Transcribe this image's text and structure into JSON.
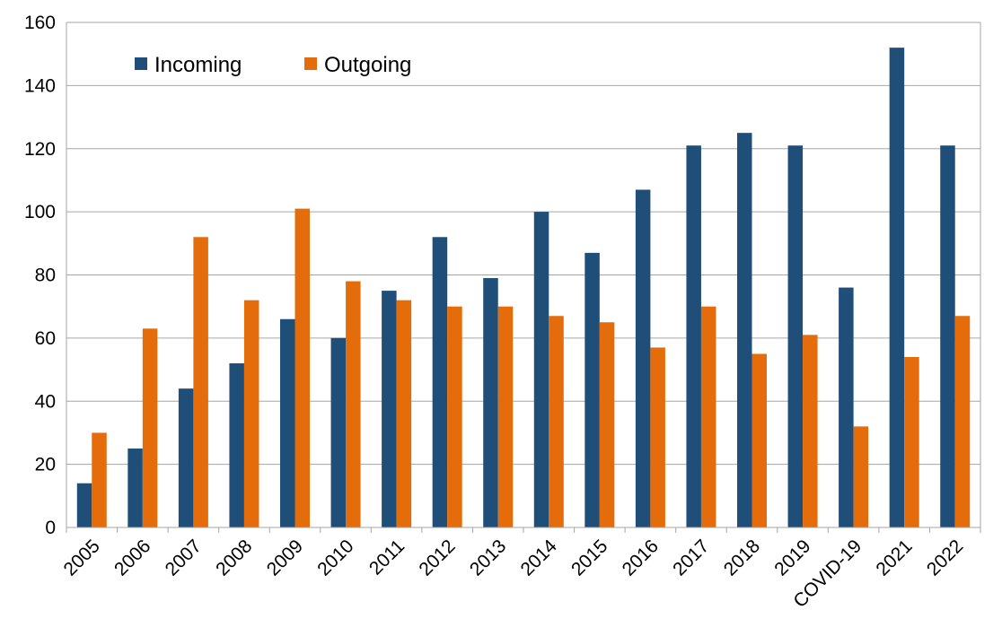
{
  "chart_data": {
    "type": "bar",
    "title": "",
    "xlabel": "",
    "ylabel": "",
    "categories": [
      "2005",
      "2006",
      "2007",
      "2008",
      "2009",
      "2010",
      "2011",
      "2012",
      "2013",
      "2014",
      "2015",
      "2016",
      "2017",
      "2018",
      "2019",
      "COVID-19",
      "2021",
      "2022"
    ],
    "series": [
      {
        "name": "Incoming",
        "color": "#1f4e79",
        "values": [
          14,
          25,
          44,
          52,
          66,
          60,
          75,
          92,
          79,
          100,
          87,
          107,
          121,
          125,
          121,
          76,
          152,
          121
        ]
      },
      {
        "name": "Outgoing",
        "color": "#e46c0a",
        "values": [
          30,
          63,
          92,
          72,
          101,
          78,
          72,
          70,
          70,
          67,
          65,
          57,
          70,
          55,
          61,
          32,
          54,
          67
        ]
      }
    ],
    "ylim": [
      0,
      160
    ],
    "yticks": [
      0,
      20,
      40,
      60,
      80,
      100,
      120,
      140,
      160
    ],
    "grid": true,
    "legend_position": "top-left"
  }
}
